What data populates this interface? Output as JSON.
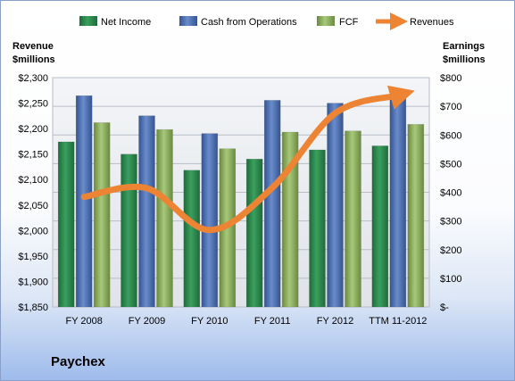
{
  "company": "Paychex",
  "chart_data": {
    "type": "bar",
    "categories": [
      "FY 2008",
      "FY 2009",
      "FY 2010",
      "FY 2011",
      "FY 2012",
      "TTM 11-2012"
    ],
    "series": [
      {
        "name": "Net Income",
        "axis": "right",
        "color": "#2e8a4e",
        "values": [
          576,
          533,
          477,
          516,
          548,
          562
        ]
      },
      {
        "name": "Cash from Operations",
        "axis": "right",
        "color": "#4e72b8",
        "values": [
          737,
          667,
          605,
          721,
          711,
          747
        ]
      },
      {
        "name": "FCF",
        "axis": "right",
        "color": "#8fb060",
        "values": [
          643,
          619,
          552,
          610,
          614,
          637
        ]
      },
      {
        "name": "Revenues",
        "axis": "left",
        "type": "line",
        "color": "#ec8434",
        "values": [
          2066,
          2083,
          2001,
          2084,
          2230,
          2265
        ]
      }
    ],
    "left_axis": {
      "title": [
        "Revenue",
        "$millions"
      ],
      "range": [
        1850,
        2300
      ],
      "ticks": [
        "$1,850",
        "$1,900",
        "$1,950",
        "$2,000",
        "$2,050",
        "$2,100",
        "$2,150",
        "$2,200",
        "$2,250",
        "$2,300"
      ]
    },
    "right_axis": {
      "title": [
        "Earnings",
        "$millions"
      ],
      "range": [
        0,
        800
      ],
      "ticks": [
        "$-",
        "$100",
        "$200",
        "$300",
        "$400",
        "$500",
        "$600",
        "$700",
        "$800"
      ]
    },
    "grid": true,
    "legend": "top"
  }
}
